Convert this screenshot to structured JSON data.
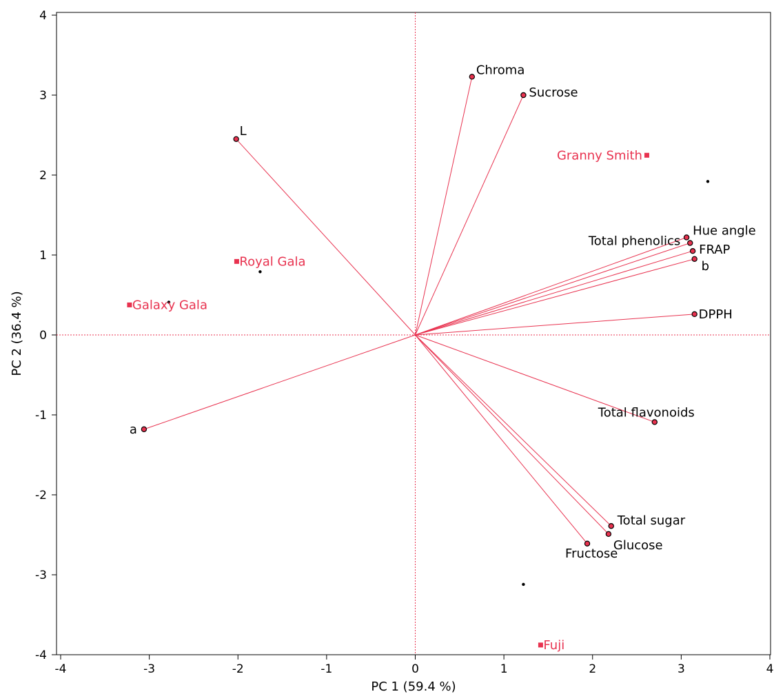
{
  "chart_data": {
    "type": "scatter",
    "subtype": "biplot",
    "title": "",
    "xlabel": "PC 1  (59.4 %)",
    "ylabel": "PC 2  (36.4 %)",
    "xlim": [
      -4,
      4
    ],
    "ylim": [
      -4,
      4
    ],
    "xticks": [
      -4,
      -3,
      -2,
      -1,
      0,
      1,
      2,
      3,
      4
    ],
    "yticks": [
      -4,
      -3,
      -2,
      -1,
      0,
      1,
      2,
      3,
      4
    ],
    "grid": false,
    "reference_lines": {
      "x": 0,
      "y": 0,
      "style": "dotted"
    },
    "colors": {
      "loading_vector": "#e8324f",
      "observation_label": "#e8324f",
      "point": "#000000",
      "text": "#000000"
    },
    "loadings": [
      {
        "name": "Chroma",
        "x": 0.64,
        "y": 3.23
      },
      {
        "name": "Sucrose",
        "x": 1.22,
        "y": 3.0
      },
      {
        "name": "L",
        "x": -2.02,
        "y": 2.45
      },
      {
        "name": "Hue angle",
        "x": 3.06,
        "y": 1.22
      },
      {
        "name": "Total phenolics",
        "x": 3.1,
        "y": 1.15
      },
      {
        "name": "FRAP",
        "x": 3.13,
        "y": 1.05
      },
      {
        "name": "b",
        "x": 3.15,
        "y": 0.95
      },
      {
        "name": "DPPH",
        "x": 3.15,
        "y": 0.26
      },
      {
        "name": "Total flavonoids",
        "x": 2.7,
        "y": -1.09
      },
      {
        "name": "a",
        "x": -3.06,
        "y": -1.18
      },
      {
        "name": "Total sugar",
        "x": 2.21,
        "y": -2.39
      },
      {
        "name": "Glucose",
        "x": 2.18,
        "y": -2.49
      },
      {
        "name": "Fructose",
        "x": 1.94,
        "y": -2.61
      }
    ],
    "scores": [
      {
        "name": "Granny Smith",
        "x": 3.3,
        "y": 1.92
      },
      {
        "name": "Royal Gala",
        "x": -1.75,
        "y": 0.79
      },
      {
        "name": "Galaxy Gala",
        "x": -2.78,
        "y": 0.41
      },
      {
        "name": "Fuji",
        "x": 1.22,
        "y": -3.12
      }
    ]
  }
}
